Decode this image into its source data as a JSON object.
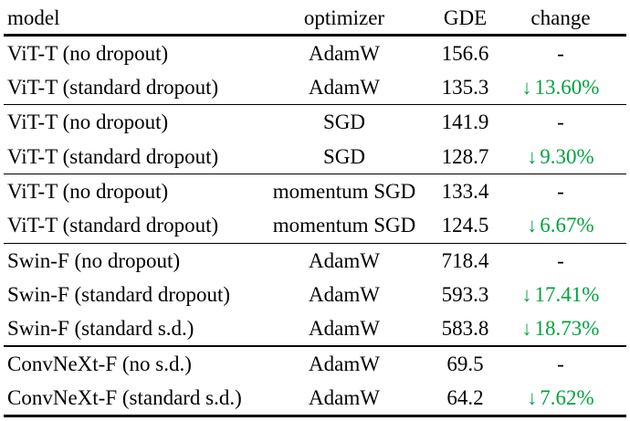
{
  "table": {
    "arrow_glyph": "↓",
    "colors": {
      "green": "#00a33e",
      "text": "#000000",
      "background": "#ffffff"
    },
    "columns": [
      {
        "label": "model",
        "align": "left"
      },
      {
        "label": "optimizer",
        "align": "center"
      },
      {
        "label": "GDE",
        "align": "center"
      },
      {
        "label": "change",
        "align": "center"
      }
    ],
    "groups": [
      {
        "rows": [
          {
            "model": "ViT-T (no dropout)",
            "optimizer": "AdamW",
            "gde": "156.6",
            "change": "-",
            "decrease": false
          },
          {
            "model": "ViT-T (standard dropout)",
            "optimizer": "AdamW",
            "gde": "135.3",
            "change": "13.60%",
            "decrease": true
          }
        ]
      },
      {
        "rows": [
          {
            "model": "ViT-T (no dropout)",
            "optimizer": "SGD",
            "gde": "141.9",
            "change": "-",
            "decrease": false
          },
          {
            "model": "ViT-T (standard dropout)",
            "optimizer": "SGD",
            "gde": "128.7",
            "change": "9.30%",
            "decrease": true
          }
        ]
      },
      {
        "rows": [
          {
            "model": "ViT-T (no dropout)",
            "optimizer": "momentum SGD",
            "gde": "133.4",
            "change": "-",
            "decrease": false
          },
          {
            "model": "ViT-T (standard dropout)",
            "optimizer": "momentum SGD",
            "gde": "124.5",
            "change": "6.67%",
            "decrease": true
          }
        ]
      },
      {
        "rows": [
          {
            "model": "Swin-F (no dropout)",
            "optimizer": "AdamW",
            "gde": "718.4",
            "change": "-",
            "decrease": false
          },
          {
            "model": "Swin-F (standard dropout)",
            "optimizer": "AdamW",
            "gde": "593.3",
            "change": "17.41%",
            "decrease": true
          },
          {
            "model": "Swin-F (standard s.d.)",
            "optimizer": "AdamW",
            "gde": "583.8",
            "change": "18.73%",
            "decrease": true
          }
        ]
      },
      {
        "rows": [
          {
            "model": "ConvNeXt-F (no s.d.)",
            "optimizer": "AdamW",
            "gde": "69.5",
            "change": "-",
            "decrease": false
          },
          {
            "model": "ConvNeXt-F (standard s.d.)",
            "optimizer": "AdamW",
            "gde": "64.2",
            "change": "7.62%",
            "decrease": true
          }
        ]
      }
    ]
  }
}
